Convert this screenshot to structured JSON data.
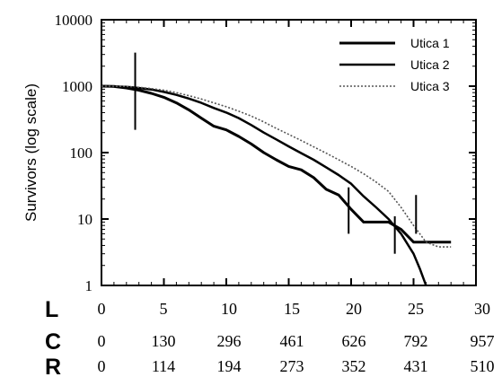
{
  "chart_data": {
    "type": "line",
    "ylabel": "Survivors (log scale)",
    "yscale": "log",
    "ylim": [
      1,
      10000
    ],
    "xlim": [
      0,
      30
    ],
    "y_ticks": [
      "1",
      "10",
      "100",
      "1000",
      "10000"
    ],
    "legend_position": "top-right",
    "series": [
      {
        "name": "Utica 1",
        "style": "solid-thick",
        "points": [
          [
            0,
            1000
          ],
          [
            1,
            990
          ],
          [
            2,
            940
          ],
          [
            3,
            870
          ],
          [
            4,
            780
          ],
          [
            5,
            680
          ],
          [
            6,
            560
          ],
          [
            7,
            440
          ],
          [
            8,
            330
          ],
          [
            9,
            250
          ],
          [
            10,
            220
          ],
          [
            11,
            175
          ],
          [
            12,
            135
          ],
          [
            13,
            100
          ],
          [
            14,
            78
          ],
          [
            15,
            62
          ],
          [
            16,
            55
          ],
          [
            17,
            42
          ],
          [
            18,
            28
          ],
          [
            19,
            23
          ],
          [
            20,
            14
          ],
          [
            21,
            9
          ],
          [
            23,
            9
          ],
          [
            24,
            7
          ],
          [
            25,
            4.5
          ],
          [
            28,
            4.5
          ]
        ]
      },
      {
        "name": "Utica 2",
        "style": "solid-medium",
        "points": [
          [
            0,
            1000
          ],
          [
            2,
            975
          ],
          [
            3,
            940
          ],
          [
            4,
            890
          ],
          [
            5,
            820
          ],
          [
            6,
            740
          ],
          [
            7,
            650
          ],
          [
            8,
            560
          ],
          [
            9,
            470
          ],
          [
            10,
            400
          ],
          [
            11,
            330
          ],
          [
            12,
            260
          ],
          [
            13,
            200
          ],
          [
            14,
            158
          ],
          [
            15,
            124
          ],
          [
            16,
            98
          ],
          [
            17,
            78
          ],
          [
            18,
            60
          ],
          [
            19,
            46
          ],
          [
            20,
            34
          ],
          [
            21,
            22
          ],
          [
            22,
            15
          ],
          [
            23,
            10
          ],
          [
            24,
            6
          ],
          [
            25,
            3
          ],
          [
            25.5,
            1.8
          ],
          [
            26,
            1
          ]
        ]
      },
      {
        "name": "Utica 3",
        "style": "dotted",
        "points": [
          [
            0,
            1000
          ],
          [
            2,
            990
          ],
          [
            3,
            960
          ],
          [
            4,
            920
          ],
          [
            5,
            870
          ],
          [
            6,
            800
          ],
          [
            7,
            720
          ],
          [
            8,
            640
          ],
          [
            9,
            560
          ],
          [
            10,
            490
          ],
          [
            11,
            420
          ],
          [
            12,
            355
          ],
          [
            13,
            290
          ],
          [
            14,
            232
          ],
          [
            15,
            188
          ],
          [
            16,
            152
          ],
          [
            17,
            122
          ],
          [
            18,
            98
          ],
          [
            19,
            78
          ],
          [
            20,
            62
          ],
          [
            21,
            48
          ],
          [
            22,
            36
          ],
          [
            23,
            26
          ],
          [
            24,
            15
          ],
          [
            25,
            8
          ],
          [
            26,
            4.5
          ],
          [
            27,
            3.8
          ],
          [
            28,
            3.8
          ]
        ]
      }
    ],
    "error_bars": [
      {
        "x": 2.7,
        "low": 220,
        "high": 3200
      },
      {
        "x": 19.8,
        "low": 6,
        "high": 30
      },
      {
        "x": 23.5,
        "low": 3,
        "high": 11
      },
      {
        "x": 25.2,
        "low": 6,
        "high": 23
      }
    ],
    "axis_rows": [
      {
        "label": "L",
        "values": [
          "0",
          "5",
          "10",
          "15",
          "20",
          "25",
          "30"
        ]
      },
      {
        "label": "C",
        "values": [
          "0",
          "130",
          "296",
          "461",
          "626",
          "792",
          "957"
        ]
      },
      {
        "label": "R",
        "values": [
          "0",
          "114",
          "194",
          "273",
          "352",
          "431",
          "510"
        ]
      }
    ]
  }
}
